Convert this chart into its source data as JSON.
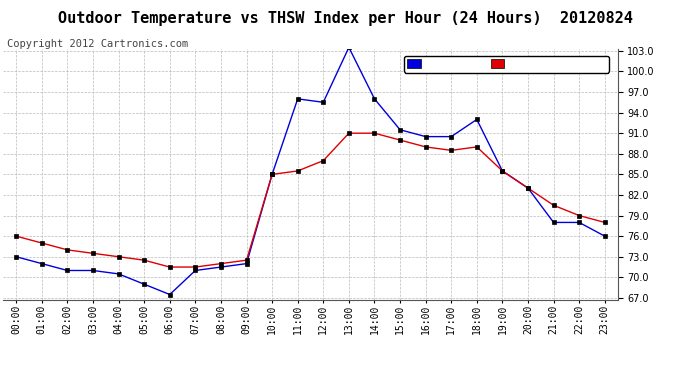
{
  "title": "Outdoor Temperature vs THSW Index per Hour (24 Hours)  20120824",
  "copyright": "Copyright 2012 Cartronics.com",
  "hours": [
    "00:00",
    "01:00",
    "02:00",
    "03:00",
    "04:00",
    "05:00",
    "06:00",
    "07:00",
    "08:00",
    "09:00",
    "10:00",
    "11:00",
    "12:00",
    "13:00",
    "14:00",
    "15:00",
    "16:00",
    "17:00",
    "18:00",
    "19:00",
    "20:00",
    "21:00",
    "22:00",
    "23:00"
  ],
  "thsw": [
    73.0,
    72.0,
    71.0,
    71.0,
    70.5,
    69.0,
    67.5,
    71.0,
    71.5,
    72.0,
    85.0,
    96.0,
    95.5,
    103.5,
    96.0,
    91.5,
    90.5,
    90.5,
    93.0,
    85.5,
    83.0,
    78.0,
    78.0,
    76.0
  ],
  "temperature": [
    76.0,
    75.0,
    74.0,
    73.5,
    73.0,
    72.5,
    71.5,
    71.5,
    72.0,
    72.5,
    85.0,
    85.5,
    87.0,
    91.0,
    91.0,
    90.0,
    89.0,
    88.5,
    89.0,
    85.5,
    83.0,
    80.5,
    79.0,
    78.0
  ],
  "thsw_color": "#0000dd",
  "temp_color": "#dd0000",
  "bg_color": "#ffffff",
  "grid_color": "#bbbbbb",
  "ylim_min": 67.0,
  "ylim_max": 103.0,
  "yticks": [
    67.0,
    70.0,
    73.0,
    76.0,
    79.0,
    82.0,
    85.0,
    88.0,
    91.0,
    94.0,
    97.0,
    100.0,
    103.0
  ],
  "legend_thsw_bg": "#0000dd",
  "legend_temp_bg": "#dd0000",
  "title_fontsize": 11,
  "copyright_fontsize": 7.5,
  "tick_fontsize": 7,
  "legend_fontsize": 8
}
